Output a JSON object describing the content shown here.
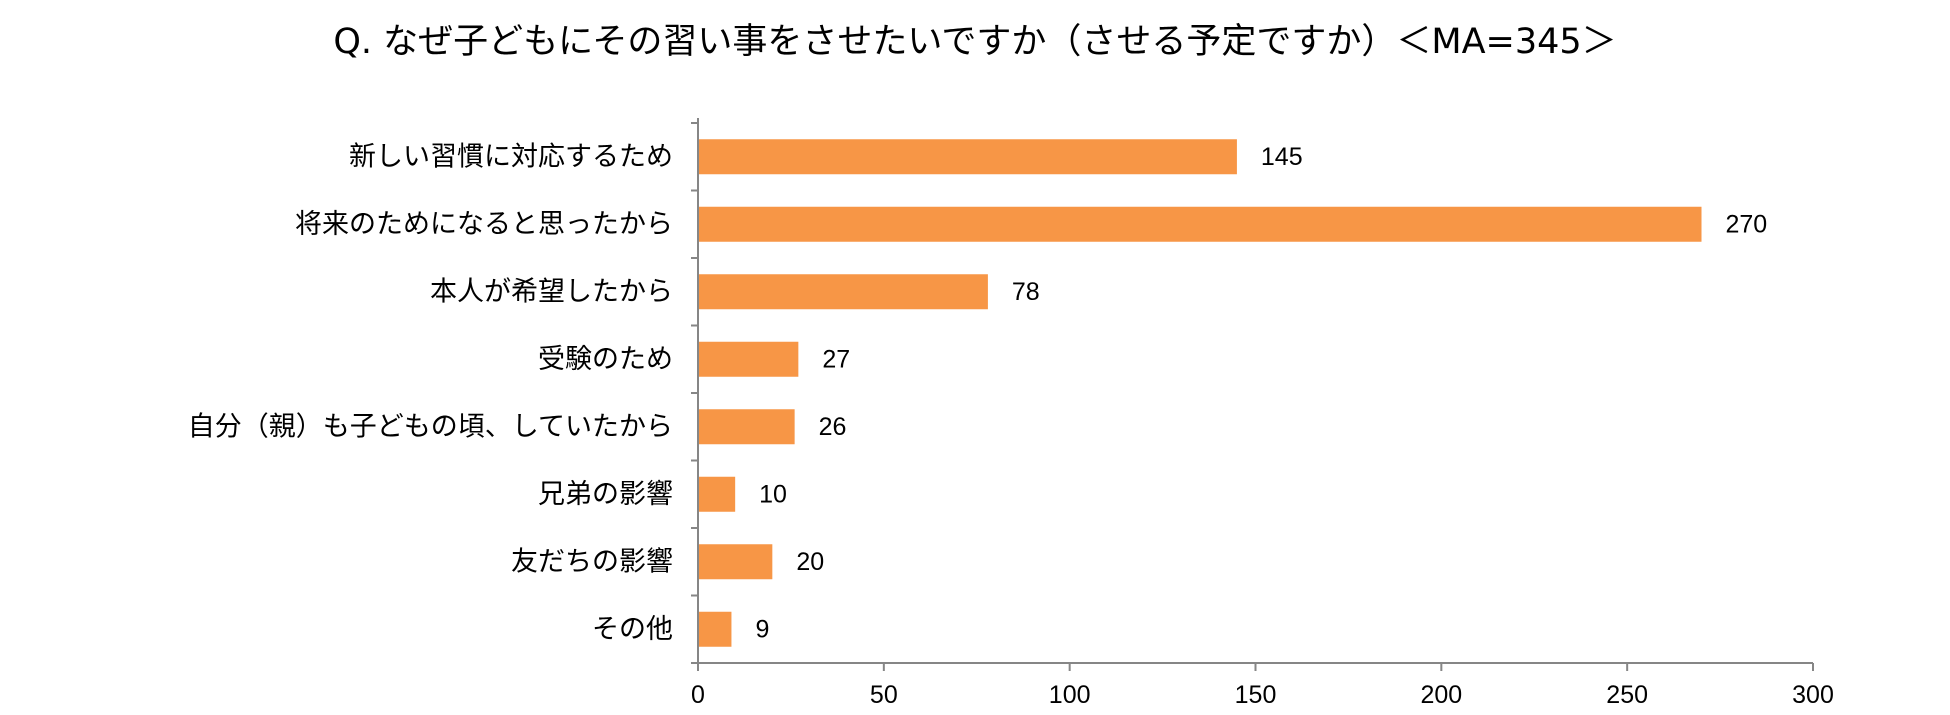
{
  "chart_data": {
    "type": "bar",
    "orientation": "horizontal",
    "title": "Q. なぜ子どもにその習い事をさせたいですか（させる予定ですか）＜MA=345＞",
    "categories": [
      "新しい習慣に対応するため",
      "将来のためになると思ったから",
      "本人が希望したから",
      "受験のため",
      "自分（親）も子どもの頃、していたから",
      "兄弟の影響",
      "友だちの影響",
      "その他"
    ],
    "values": [
      145,
      270,
      78,
      27,
      26,
      10,
      20,
      9
    ],
    "value_labels": [
      "145",
      "270",
      "78",
      "27",
      "26",
      "10",
      "20",
      "9"
    ],
    "xlim": [
      0,
      300
    ],
    "x_ticks": [
      0,
      50,
      100,
      150,
      200,
      250,
      300
    ],
    "x_tick_labels": [
      "0",
      "50",
      "100",
      "150",
      "200",
      "250",
      "300"
    ],
    "xlabel": "",
    "ylabel": "",
    "grid": false,
    "legend": "none",
    "bar_color": "#F79646",
    "axis_color": "#868686"
  }
}
